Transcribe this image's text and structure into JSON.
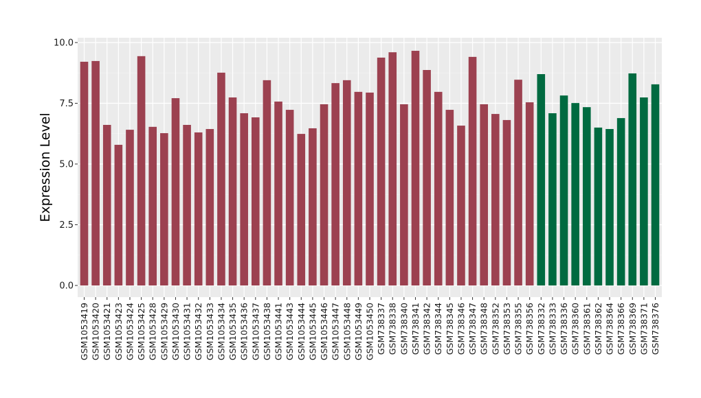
{
  "chart_data": {
    "type": "bar",
    "title": "",
    "xlabel": "",
    "ylabel": "Expression Level",
    "ylim": [
      0,
      10
    ],
    "yticks": [
      "0.0",
      "2.5",
      "5.0",
      "7.5",
      "10.0"
    ],
    "ytick_values": [
      0,
      2.5,
      5,
      7.5,
      10
    ],
    "grid": true,
    "colors": {
      "group1": "#9c4150",
      "group2": "#006a40",
      "panel": "#ebebeb",
      "grid": "#ffffff"
    },
    "categories": [
      "GSM1053419",
      "GSM1053420",
      "GSM1053421",
      "GSM1053423",
      "GSM1053424",
      "GSM1053425",
      "GSM1053428",
      "GSM1053429",
      "GSM1053430",
      "GSM1053431",
      "GSM1053432",
      "GSM1053433",
      "GSM1053434",
      "GSM1053435",
      "GSM1053436",
      "GSM1053437",
      "GSM1053438",
      "GSM1053441",
      "GSM1053443",
      "GSM1053444",
      "GSM1053445",
      "GSM1053446",
      "GSM1053447",
      "GSM1053448",
      "GSM1053449",
      "GSM1053450",
      "GSM738337",
      "GSM738338",
      "GSM738340",
      "GSM738341",
      "GSM738342",
      "GSM738344",
      "GSM738345",
      "GSM738346",
      "GSM738347",
      "GSM738348",
      "GSM738352",
      "GSM738353",
      "GSM738355",
      "GSM738356",
      "GSM738332",
      "GSM738333",
      "GSM738336",
      "GSM738360",
      "GSM738361",
      "GSM738362",
      "GSM738364",
      "GSM738366",
      "GSM738369",
      "GSM738371",
      "GSM738376"
    ],
    "values": [
      9.21,
      9.24,
      6.61,
      5.79,
      6.41,
      9.44,
      6.53,
      6.27,
      7.71,
      6.61,
      6.3,
      6.44,
      8.76,
      7.74,
      7.09,
      6.92,
      8.45,
      7.57,
      7.23,
      6.24,
      6.47,
      7.46,
      8.33,
      8.45,
      7.97,
      7.94,
      9.38,
      9.6,
      7.46,
      9.66,
      8.87,
      7.97,
      7.23,
      6.58,
      9.41,
      7.46,
      7.06,
      6.81,
      8.47,
      7.54,
      8.7,
      7.09,
      7.82,
      7.51,
      7.34,
      6.5,
      6.44,
      6.89,
      8.73,
      7.74,
      8.28
    ],
    "groups": [
      1,
      1,
      1,
      1,
      1,
      1,
      1,
      1,
      1,
      1,
      1,
      1,
      1,
      1,
      1,
      1,
      1,
      1,
      1,
      1,
      1,
      1,
      1,
      1,
      1,
      1,
      1,
      1,
      1,
      1,
      1,
      1,
      1,
      1,
      1,
      1,
      1,
      1,
      1,
      1,
      2,
      2,
      2,
      2,
      2,
      2,
      2,
      2,
      2,
      2,
      2
    ]
  }
}
